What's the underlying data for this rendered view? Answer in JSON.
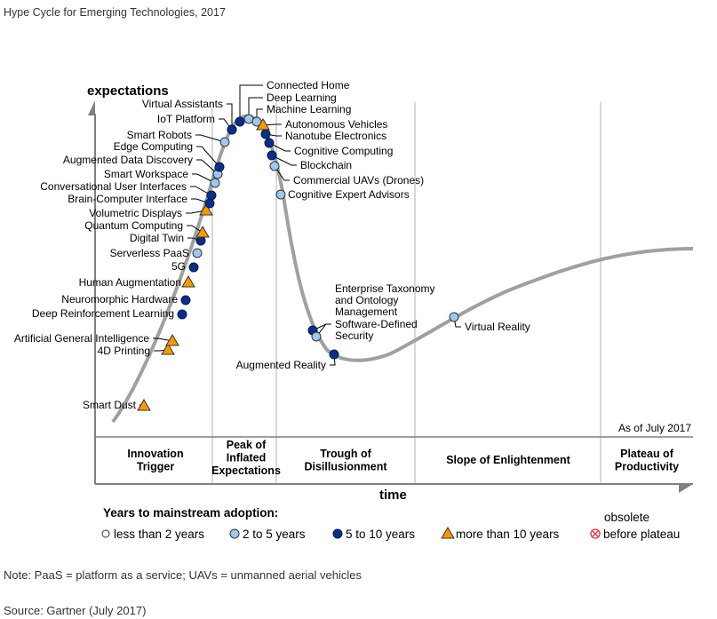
{
  "title": "Hype Cycle for Emerging Technologies, 2017",
  "axes": {
    "y_label": "expectations",
    "x_label": "time"
  },
  "as_of": "As of July 2017",
  "phases": [
    [
      "Innovation",
      "Trigger"
    ],
    [
      "Peak of",
      "Inflated",
      "Expectations"
    ],
    [
      "Trough of",
      "Disillusionment"
    ],
    [
      "Slope of Enlightenment"
    ],
    [
      "Plateau of",
      "Productivity"
    ]
  ],
  "legend": {
    "title": "Years to mainstream adoption:",
    "items": [
      {
        "key": "lt2",
        "label": "less than 2 years"
      },
      {
        "key": "2to5",
        "label": "2 to 5 years"
      },
      {
        "key": "5to10",
        "label": "5 to 10 years"
      },
      {
        "key": "gt10",
        "label": "more than 10 years"
      },
      {
        "key": "obsolete",
        "label_top": "obsolete",
        "label": "before plateau"
      }
    ]
  },
  "colors": {
    "lt2": "#ffffff",
    "2to5": "#9fc8f0",
    "5to10": "#0b2f87",
    "gt10": "#f79a00",
    "obsolete": "#e0303a",
    "curve": "#a0a0a0"
  },
  "technologies": [
    {
      "name": "Smart Dust",
      "cat": "gt10"
    },
    {
      "name": "4D Printing",
      "cat": "gt10"
    },
    {
      "name": "Artificial General Intelligence",
      "cat": "gt10"
    },
    {
      "name": "Deep Reinforcement Learning",
      "cat": "5to10"
    },
    {
      "name": "Neuromorphic Hardware",
      "cat": "5to10"
    },
    {
      "name": "Human Augmentation",
      "cat": "gt10"
    },
    {
      "name": "5G",
      "cat": "5to10"
    },
    {
      "name": "Serverless PaaS",
      "cat": "2to5"
    },
    {
      "name": "Digital Twin",
      "cat": "5to10"
    },
    {
      "name": "Quantum Computing",
      "cat": "gt10"
    },
    {
      "name": "Volumetric Displays",
      "cat": "gt10"
    },
    {
      "name": "Brain-Computer Interface",
      "cat": "5to10"
    },
    {
      "name": "Conversational User Interfaces",
      "cat": "5to10"
    },
    {
      "name": "Smart Workspace",
      "cat": "2to5"
    },
    {
      "name": "Augmented Data Discovery",
      "cat": "2to5"
    },
    {
      "name": "Edge Computing",
      "cat": "5to10"
    },
    {
      "name": "Smart Robots",
      "cat": "2to5"
    },
    {
      "name": "IoT Platform",
      "cat": "5to10"
    },
    {
      "name": "Virtual Assistants",
      "cat": "5to10"
    },
    {
      "name": "Connected Home",
      "cat": "5to10"
    },
    {
      "name": "Deep Learning",
      "cat": "2to5"
    },
    {
      "name": "Machine Learning",
      "cat": "2to5"
    },
    {
      "name": "Autonomous Vehicles",
      "cat": "gt10"
    },
    {
      "name": "Nanotube Electronics",
      "cat": "5to10"
    },
    {
      "name": "Cognitive Computing",
      "cat": "5to10"
    },
    {
      "name": "Blockchain",
      "cat": "5to10"
    },
    {
      "name": "Commercial UAVs (Drones)",
      "cat": "2to5"
    },
    {
      "name": "Cognitive Expert Advisors",
      "cat": "2to5"
    },
    {
      "name": "Enterprise Taxonomy and Ontology Management",
      "lines": [
        "Enterprise Taxonomy",
        "and Ontology",
        "Management"
      ],
      "cat": "5to10"
    },
    {
      "name": "Software-Defined Security",
      "lines": [
        "Software-Defined",
        "Security"
      ],
      "cat": "2to5"
    },
    {
      "name": "Augmented Reality",
      "cat": "5to10"
    },
    {
      "name": "Virtual Reality",
      "cat": "2to5"
    }
  ],
  "note": "Note: PaaS = platform as a service; UAVs = unmanned aerial vehicles",
  "source": "Source: Gartner (July 2017)"
}
